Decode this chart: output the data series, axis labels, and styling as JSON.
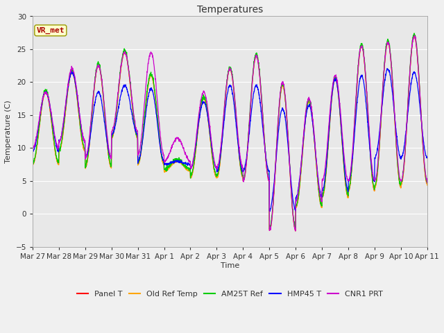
{
  "title": "Temperatures",
  "xlabel": "Time",
  "ylabel": "Temperature (C)",
  "ylim": [
    -5,
    30
  ],
  "yticks": [
    -5,
    0,
    5,
    10,
    15,
    20,
    25,
    30
  ],
  "background_color": "#f0f0f0",
  "plot_bg_color": "#e8e8e8",
  "legend_entries": [
    "Panel T",
    "Old Ref Temp",
    "AM25T Ref",
    "HMP45 T",
    "CNR1 PRT"
  ],
  "legend_colors": [
    "#ff0000",
    "#ffa500",
    "#00cc00",
    "#0000ff",
    "#cc00cc"
  ],
  "annotation_text": "VR_met",
  "tick_dates": [
    "Mar 27",
    "Mar 28",
    "Mar 29",
    "Mar 30",
    "Mar 31",
    "Apr 1",
    "Apr 2",
    "Apr 3",
    "Apr 4",
    "Apr 5",
    "Apr 6",
    "Apr 7",
    "Apr 8",
    "Apr 9",
    "Apr 10",
    "Apr 11"
  ],
  "daily_peaks": [
    18.5,
    21.5,
    22.5,
    24.5,
    21,
    8.0,
    17.5,
    22.0,
    24.0,
    19.5,
    17.0,
    20.5,
    25.5,
    26.0,
    27.0
  ],
  "daily_mins": [
    7.5,
    9.5,
    7.0,
    11.5,
    7.5,
    6.5,
    5.5,
    5.5,
    5.0,
    -2.5,
    1.0,
    2.5,
    3.5,
    4.0,
    4.5
  ],
  "daily_peaks_b": [
    18.5,
    21.5,
    18.5,
    19.5,
    19.0,
    8.0,
    17.0,
    19.5,
    19.5,
    16.0,
    16.5,
    20.5,
    21.0,
    22.0,
    21.5
  ],
  "daily_mins_b": [
    9.5,
    11.0,
    8.5,
    12.0,
    8.0,
    7.5,
    7.0,
    6.5,
    6.5,
    0.5,
    2.5,
    3.5,
    5.0,
    8.5,
    8.5
  ],
  "daily_peaks_p": [
    18.5,
    22.0,
    22.5,
    24.5,
    24.5,
    11.5,
    18.5,
    22.0,
    24.0,
    20.0,
    17.5,
    21.0,
    25.5,
    26.0,
    27.0
  ],
  "daily_mins_p": [
    10.0,
    11.0,
    8.5,
    12.5,
    9.0,
    8.0,
    7.0,
    7.0,
    5.0,
    -2.5,
    2.0,
    5.0,
    5.0,
    5.0,
    5.0
  ]
}
